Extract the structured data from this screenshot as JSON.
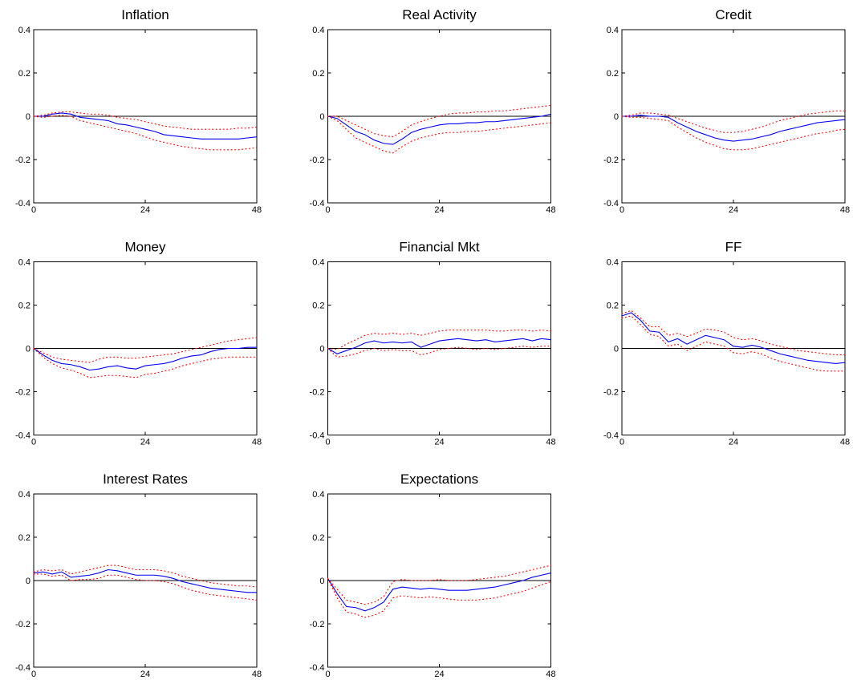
{
  "chart_data": [
    {
      "type": "line",
      "title": "Inflation",
      "x": [
        0,
        2,
        4,
        6,
        8,
        10,
        12,
        14,
        16,
        18,
        20,
        22,
        24,
        26,
        28,
        30,
        32,
        34,
        36,
        38,
        40,
        42,
        44,
        46,
        48
      ],
      "xlim": [
        0,
        48
      ],
      "xticks": [
        0,
        24,
        48
      ],
      "ylim": [
        -0.4,
        0.4
      ],
      "yticks": [
        -0.4,
        -0.2,
        0,
        0.2,
        0.4
      ],
      "hline": 0,
      "series": [
        {
          "color": "#0000ff",
          "style": "solid",
          "values": [
            0,
            0,
            0.01,
            0.015,
            0.01,
            -0.005,
            -0.01,
            -0.015,
            -0.02,
            -0.035,
            -0.04,
            -0.05,
            -0.06,
            -0.07,
            -0.085,
            -0.09,
            -0.095,
            -0.1,
            -0.105,
            -0.105,
            -0.105,
            -0.105,
            -0.105,
            -0.1,
            -0.095
          ]
        },
        {
          "color": "#ff0000",
          "style": "dotted",
          "values": [
            0,
            0.005,
            0.015,
            0.02,
            0.02,
            0.015,
            0.01,
            0.01,
            0.005,
            -0.005,
            -0.01,
            -0.015,
            -0.025,
            -0.035,
            -0.045,
            -0.05,
            -0.055,
            -0.06,
            -0.06,
            -0.06,
            -0.06,
            -0.06,
            -0.055,
            -0.055,
            -0.05
          ]
        },
        {
          "color": "#ff0000",
          "style": "dotted",
          "values": [
            0,
            -0.005,
            0,
            0.005,
            0,
            -0.02,
            -0.03,
            -0.04,
            -0.05,
            -0.06,
            -0.07,
            -0.08,
            -0.095,
            -0.11,
            -0.12,
            -0.13,
            -0.14,
            -0.145,
            -0.15,
            -0.155,
            -0.155,
            -0.155,
            -0.155,
            -0.15,
            -0.145
          ]
        }
      ]
    },
    {
      "type": "line",
      "title": "Real Activity",
      "x": [
        0,
        2,
        4,
        6,
        8,
        10,
        12,
        14,
        16,
        18,
        20,
        22,
        24,
        26,
        28,
        30,
        32,
        34,
        36,
        38,
        40,
        42,
        44,
        46,
        48
      ],
      "xlim": [
        0,
        48
      ],
      "xticks": [
        0,
        24,
        48
      ],
      "ylim": [
        -0.4,
        0.4
      ],
      "yticks": [
        -0.4,
        -0.2,
        0,
        0.2,
        0.4
      ],
      "hline": 0,
      "series": [
        {
          "color": "#0000ff",
          "style": "solid",
          "values": [
            0,
            -0.01,
            -0.04,
            -0.07,
            -0.085,
            -0.11,
            -0.125,
            -0.13,
            -0.105,
            -0.075,
            -0.06,
            -0.05,
            -0.04,
            -0.035,
            -0.035,
            -0.03,
            -0.03,
            -0.025,
            -0.025,
            -0.02,
            -0.015,
            -0.01,
            -0.005,
            0,
            0.01
          ]
        },
        {
          "color": "#ff0000",
          "style": "dotted",
          "values": [
            0,
            0,
            -0.02,
            -0.04,
            -0.06,
            -0.08,
            -0.09,
            -0.095,
            -0.07,
            -0.04,
            -0.025,
            -0.01,
            0,
            0.01,
            0.015,
            0.015,
            0.02,
            0.02,
            0.025,
            0.025,
            0.03,
            0.035,
            0.04,
            0.045,
            0.05
          ]
        },
        {
          "color": "#ff0000",
          "style": "dotted",
          "values": [
            0,
            -0.02,
            -0.06,
            -0.1,
            -0.12,
            -0.14,
            -0.16,
            -0.17,
            -0.14,
            -0.115,
            -0.1,
            -0.09,
            -0.08,
            -0.075,
            -0.075,
            -0.07,
            -0.07,
            -0.065,
            -0.06,
            -0.055,
            -0.05,
            -0.045,
            -0.04,
            -0.035,
            -0.03
          ]
        }
      ]
    },
    {
      "type": "line",
      "title": "Credit",
      "x": [
        0,
        2,
        4,
        6,
        8,
        10,
        12,
        14,
        16,
        18,
        20,
        22,
        24,
        26,
        28,
        30,
        32,
        34,
        36,
        38,
        40,
        42,
        44,
        46,
        48
      ],
      "xlim": [
        0,
        48
      ],
      "xticks": [
        0,
        24,
        48
      ],
      "ylim": [
        -0.4,
        0.4
      ],
      "yticks": [
        -0.4,
        -0.2,
        0,
        0.2,
        0.4
      ],
      "hline": 0,
      "series": [
        {
          "color": "#0000ff",
          "style": "solid",
          "values": [
            0,
            0,
            0.005,
            0,
            0,
            -0.005,
            -0.03,
            -0.05,
            -0.07,
            -0.085,
            -0.1,
            -0.11,
            -0.115,
            -0.11,
            -0.105,
            -0.095,
            -0.085,
            -0.07,
            -0.06,
            -0.05,
            -0.04,
            -0.03,
            -0.025,
            -0.02,
            -0.015
          ]
        },
        {
          "color": "#ff0000",
          "style": "dotted",
          "values": [
            0,
            0.005,
            0.015,
            0.015,
            0.01,
            0.005,
            -0.01,
            -0.025,
            -0.04,
            -0.055,
            -0.065,
            -0.075,
            -0.075,
            -0.07,
            -0.06,
            -0.05,
            -0.035,
            -0.02,
            -0.01,
            0,
            0.01,
            0.015,
            0.02,
            0.025,
            0.025
          ]
        },
        {
          "color": "#ff0000",
          "style": "dotted",
          "values": [
            0,
            -0.005,
            -0.005,
            -0.01,
            -0.015,
            -0.02,
            -0.05,
            -0.075,
            -0.1,
            -0.12,
            -0.135,
            -0.15,
            -0.155,
            -0.155,
            -0.15,
            -0.14,
            -0.13,
            -0.12,
            -0.11,
            -0.1,
            -0.09,
            -0.08,
            -0.075,
            -0.065,
            -0.06
          ]
        }
      ]
    },
    {
      "type": "line",
      "title": "Money",
      "x": [
        0,
        2,
        4,
        6,
        8,
        10,
        12,
        14,
        16,
        18,
        20,
        22,
        24,
        26,
        28,
        30,
        32,
        34,
        36,
        38,
        40,
        42,
        44,
        46,
        48
      ],
      "xlim": [
        0,
        48
      ],
      "xticks": [
        0,
        24,
        48
      ],
      "ylim": [
        -0.4,
        0.4
      ],
      "yticks": [
        -0.4,
        -0.2,
        0,
        0.2,
        0.4
      ],
      "hline": 0,
      "series": [
        {
          "color": "#0000ff",
          "style": "solid",
          "values": [
            0,
            -0.03,
            -0.055,
            -0.07,
            -0.075,
            -0.085,
            -0.1,
            -0.095,
            -0.085,
            -0.08,
            -0.09,
            -0.095,
            -0.08,
            -0.075,
            -0.07,
            -0.06,
            -0.045,
            -0.035,
            -0.03,
            -0.015,
            -0.005,
            0,
            0,
            0.005,
            0.005
          ]
        },
        {
          "color": "#ff0000",
          "style": "dotted",
          "values": [
            0,
            -0.02,
            -0.04,
            -0.05,
            -0.055,
            -0.06,
            -0.065,
            -0.05,
            -0.04,
            -0.04,
            -0.045,
            -0.045,
            -0.04,
            -0.035,
            -0.03,
            -0.025,
            -0.015,
            -0.005,
            0.005,
            0.015,
            0.025,
            0.035,
            0.04,
            0.045,
            0.05
          ]
        },
        {
          "color": "#ff0000",
          "style": "dotted",
          "values": [
            0,
            -0.04,
            -0.07,
            -0.09,
            -0.1,
            -0.115,
            -0.135,
            -0.13,
            -0.125,
            -0.125,
            -0.13,
            -0.135,
            -0.12,
            -0.115,
            -0.105,
            -0.095,
            -0.08,
            -0.07,
            -0.06,
            -0.05,
            -0.045,
            -0.04,
            -0.04,
            -0.04,
            -0.04
          ]
        }
      ]
    },
    {
      "type": "line",
      "title": "Financial Mkt",
      "x": [
        0,
        2,
        4,
        6,
        8,
        10,
        12,
        14,
        16,
        18,
        20,
        22,
        24,
        26,
        28,
        30,
        32,
        34,
        36,
        38,
        40,
        42,
        44,
        46,
        48
      ],
      "xlim": [
        0,
        48
      ],
      "xticks": [
        0,
        24,
        48
      ],
      "ylim": [
        -0.4,
        0.4
      ],
      "yticks": [
        -0.4,
        -0.2,
        0,
        0.2,
        0.4
      ],
      "hline": 0,
      "series": [
        {
          "color": "#0000ff",
          "style": "solid",
          "values": [
            0,
            -0.025,
            -0.01,
            0.005,
            0.025,
            0.035,
            0.025,
            0.03,
            0.025,
            0.03,
            0.005,
            0.02,
            0.035,
            0.04,
            0.045,
            0.04,
            0.035,
            0.04,
            0.03,
            0.035,
            0.04,
            0.045,
            0.035,
            0.045,
            0.04
          ]
        },
        {
          "color": "#ff0000",
          "style": "dotted",
          "values": [
            0,
            -0.005,
            0.02,
            0.04,
            0.06,
            0.07,
            0.065,
            0.07,
            0.065,
            0.07,
            0.06,
            0.07,
            0.08,
            0.085,
            0.085,
            0.085,
            0.085,
            0.085,
            0.08,
            0.08,
            0.085,
            0.085,
            0.08,
            0.085,
            0.08
          ]
        },
        {
          "color": "#ff0000",
          "style": "dotted",
          "values": [
            0,
            -0.04,
            -0.035,
            -0.025,
            -0.01,
            0,
            -0.01,
            -0.005,
            -0.01,
            -0.01,
            -0.03,
            -0.02,
            -0.005,
            0,
            0.005,
            0,
            -0.005,
            0,
            -0.005,
            0,
            0.005,
            0.01,
            0.005,
            0.01,
            0.01
          ]
        }
      ]
    },
    {
      "type": "line",
      "title": "FF",
      "x": [
        0,
        2,
        4,
        6,
        8,
        10,
        12,
        14,
        16,
        18,
        20,
        22,
        24,
        26,
        28,
        30,
        32,
        34,
        36,
        38,
        40,
        42,
        44,
        46,
        48
      ],
      "xlim": [
        0,
        48
      ],
      "xticks": [
        0,
        24,
        48
      ],
      "ylim": [
        -0.4,
        0.4
      ],
      "yticks": [
        -0.4,
        -0.2,
        0,
        0.2,
        0.4
      ],
      "hline": 0,
      "series": [
        {
          "color": "#0000ff",
          "style": "solid",
          "values": [
            0.15,
            0.165,
            0.13,
            0.08,
            0.075,
            0.03,
            0.045,
            0.02,
            0.04,
            0.06,
            0.05,
            0.04,
            0.01,
            0.005,
            0.015,
            0.005,
            -0.01,
            -0.025,
            -0.035,
            -0.045,
            -0.055,
            -0.06,
            -0.065,
            -0.07,
            -0.065
          ]
        },
        {
          "color": "#ff0000",
          "style": "dotted",
          "values": [
            0.16,
            0.175,
            0.14,
            0.1,
            0.1,
            0.06,
            0.07,
            0.055,
            0.07,
            0.09,
            0.085,
            0.075,
            0.05,
            0.04,
            0.045,
            0.035,
            0.02,
            0.01,
            0,
            -0.01,
            -0.015,
            -0.02,
            -0.025,
            -0.03,
            -0.03
          ]
        },
        {
          "color": "#ff0000",
          "style": "dotted",
          "values": [
            0.14,
            0.15,
            0.11,
            0.065,
            0.055,
            0.01,
            0.02,
            -0.01,
            0.01,
            0.03,
            0.02,
            0.01,
            -0.02,
            -0.025,
            -0.015,
            -0.025,
            -0.045,
            -0.06,
            -0.07,
            -0.08,
            -0.09,
            -0.1,
            -0.105,
            -0.105,
            -0.105
          ]
        }
      ]
    },
    {
      "type": "line",
      "title": "Interest Rates",
      "x": [
        0,
        2,
        4,
        6,
        8,
        10,
        12,
        14,
        16,
        18,
        20,
        22,
        24,
        26,
        28,
        30,
        32,
        34,
        36,
        38,
        40,
        42,
        44,
        46,
        48
      ],
      "xlim": [
        0,
        48
      ],
      "xticks": [
        0,
        24,
        48
      ],
      "ylim": [
        -0.4,
        0.4
      ],
      "yticks": [
        -0.4,
        -0.2,
        0,
        0.2,
        0.4
      ],
      "hline": 0,
      "series": [
        {
          "color": "#0000ff",
          "style": "solid",
          "values": [
            0.035,
            0.04,
            0.03,
            0.04,
            0.015,
            0.02,
            0.025,
            0.035,
            0.05,
            0.045,
            0.035,
            0.025,
            0.025,
            0.025,
            0.02,
            0.01,
            -0.005,
            -0.015,
            -0.025,
            -0.035,
            -0.04,
            -0.045,
            -0.05,
            -0.055,
            -0.055
          ]
        },
        {
          "color": "#ff0000",
          "style": "dotted",
          "values": [
            0.04,
            0.05,
            0.045,
            0.05,
            0.03,
            0.04,
            0.05,
            0.06,
            0.07,
            0.07,
            0.06,
            0.05,
            0.05,
            0.05,
            0.045,
            0.035,
            0.02,
            0.01,
            0,
            -0.01,
            -0.015,
            -0.02,
            -0.025,
            -0.025,
            -0.03
          ]
        },
        {
          "color": "#ff0000",
          "style": "dotted",
          "values": [
            0.03,
            0.03,
            0.02,
            0.025,
            0,
            0.005,
            0.005,
            0.01,
            0.025,
            0.025,
            0.015,
            0.005,
            0,
            0,
            -0.005,
            -0.015,
            -0.03,
            -0.045,
            -0.055,
            -0.065,
            -0.07,
            -0.075,
            -0.08,
            -0.085,
            -0.09
          ]
        }
      ]
    },
    {
      "type": "line",
      "title": "Expectations",
      "x": [
        0,
        2,
        4,
        6,
        8,
        10,
        12,
        14,
        16,
        18,
        20,
        22,
        24,
        26,
        28,
        30,
        32,
        34,
        36,
        38,
        40,
        42,
        44,
        46,
        48
      ],
      "xlim": [
        0,
        48
      ],
      "xticks": [
        0,
        24,
        48
      ],
      "ylim": [
        -0.4,
        0.4
      ],
      "yticks": [
        -0.4,
        -0.2,
        0,
        0.2,
        0.4
      ],
      "hline": 0,
      "series": [
        {
          "color": "#0000ff",
          "style": "solid",
          "values": [
            0.01,
            -0.06,
            -0.12,
            -0.125,
            -0.14,
            -0.125,
            -0.1,
            -0.04,
            -0.03,
            -0.035,
            -0.04,
            -0.035,
            -0.04,
            -0.045,
            -0.045,
            -0.045,
            -0.04,
            -0.035,
            -0.03,
            -0.02,
            -0.01,
            0,
            0.015,
            0.025,
            0.035
          ]
        },
        {
          "color": "#ff0000",
          "style": "dotted",
          "values": [
            0.01,
            -0.04,
            -0.09,
            -0.1,
            -0.11,
            -0.1,
            -0.075,
            -0.005,
            0.005,
            0,
            0,
            0,
            0.005,
            0,
            0,
            0,
            0.005,
            0.01,
            0.015,
            0.02,
            0.03,
            0.04,
            0.05,
            0.06,
            0.07
          ]
        },
        {
          "color": "#ff0000",
          "style": "dotted",
          "values": [
            0.01,
            -0.08,
            -0.145,
            -0.155,
            -0.17,
            -0.16,
            -0.14,
            -0.08,
            -0.07,
            -0.075,
            -0.08,
            -0.075,
            -0.08,
            -0.085,
            -0.09,
            -0.09,
            -0.09,
            -0.085,
            -0.08,
            -0.07,
            -0.06,
            -0.05,
            -0.035,
            -0.02,
            -0.005
          ]
        }
      ]
    }
  ]
}
